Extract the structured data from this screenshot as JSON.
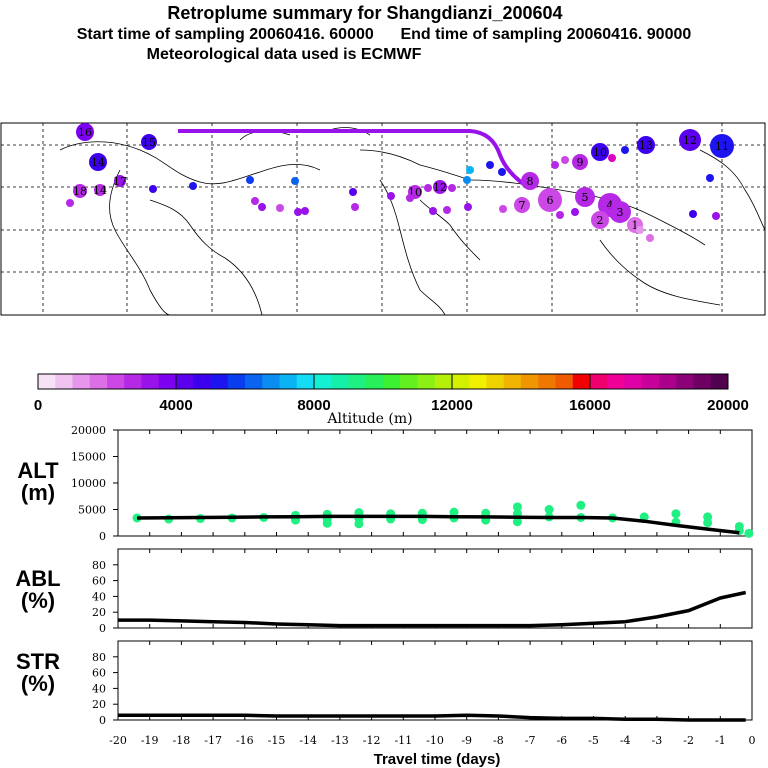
{
  "header": {
    "title": "Retroplume summary for Shangdianzi_200604",
    "start_label": "Start time of sampling 20060416. 60000",
    "end_label": "End time of sampling 20060416. 90000",
    "met_label": "Meteorological data used is ECMWF"
  },
  "colorbar": {
    "label": "Altitude (m)",
    "ticks": [
      "0",
      "4000",
      "8000",
      "12000",
      "16000",
      "20000"
    ],
    "colors": [
      "#f7e1f7",
      "#f0c2f0",
      "#e696ec",
      "#dc6ee6",
      "#cc48e6",
      "#b428e6",
      "#9a12ea",
      "#7e00f0",
      "#5a00ee",
      "#3c00ee",
      "#1e14f0",
      "#0a3cf0",
      "#0a64f0",
      "#0a8cf0",
      "#0ab4f4",
      "#14dcf4",
      "#14f0d2",
      "#14f0aa",
      "#1ef082",
      "#28f05a",
      "#3cf032",
      "#64f01e",
      "#8cf014",
      "#b4f00a",
      "#d2f000",
      "#f0f000",
      "#f0d200",
      "#f0b400",
      "#f09600",
      "#f07800",
      "#f05a00",
      "#f00000",
      "#f0006e",
      "#f00096",
      "#e000a8",
      "#c8009a",
      "#aa008c",
      "#8c0078",
      "#6e0064",
      "#50004e"
    ]
  },
  "map_labels": [
    {
      "text": "16",
      "color": "#7e00f0"
    },
    {
      "text": "15",
      "color": "#3c00ee"
    },
    {
      "text": "14",
      "color": "#3c00ee"
    },
    {
      "text": "17",
      "color": "#9a12ea"
    },
    {
      "text": "18",
      "color": "#b428e6"
    },
    {
      "text": "14",
      "color": "#b428e6"
    },
    {
      "text": "13",
      "color": "#3c00ee"
    },
    {
      "text": "12",
      "color": "#5a00ee"
    },
    {
      "text": "11",
      "color": "#1e14f0"
    },
    {
      "text": "10",
      "color": "#3c00ee"
    },
    {
      "text": "9",
      "color": "#b428e6"
    },
    {
      "text": "8",
      "color": "#b428e6"
    },
    {
      "text": "7",
      "color": "#cc48e6"
    },
    {
      "text": "6",
      "color": "#cc48e6"
    },
    {
      "text": "5",
      "color": "#b428e6"
    },
    {
      "text": "4",
      "color": "#b428e6"
    },
    {
      "text": "3",
      "color": "#b428e6"
    },
    {
      "text": "2",
      "color": "#cc48e6"
    },
    {
      "text": "1",
      "color": "#dc6ee6"
    },
    {
      "text": "12",
      "color": "#9a12ea"
    },
    {
      "text": "10",
      "color": "#b428e6"
    }
  ],
  "panels": {
    "alt": {
      "label_line1": "ALT",
      "label_line2": "(m)"
    },
    "abl": {
      "label_line1": "ABL",
      "label_line2": "(%)"
    },
    "str": {
      "label_line1": "STR",
      "label_line2": "(%)"
    },
    "xlabel": "Travel time (days)"
  },
  "chart_data": [
    {
      "type": "line",
      "name": "ALT",
      "ylabel": "ALT (m)",
      "ylim": [
        0,
        20000
      ],
      "yticks": [
        0,
        5000,
        10000,
        15000,
        20000
      ],
      "x": [
        -19.4,
        -18.4,
        -17.4,
        -16.4,
        -15.4,
        -14.4,
        -13.4,
        -12.4,
        -11.4,
        -10.4,
        -9.4,
        -8.4,
        -7.4,
        -6.4,
        -5.4,
        -4.4,
        -3.4,
        -2.4,
        -1.4,
        -0.4
      ],
      "y": [
        3400,
        3450,
        3500,
        3550,
        3600,
        3650,
        3700,
        3700,
        3700,
        3700,
        3650,
        3600,
        3550,
        3500,
        3500,
        3400,
        2800,
        2000,
        1300,
        600
      ],
      "points": [
        {
          "x": -19.4,
          "y": 3400
        },
        {
          "x": -18.4,
          "y": 3200
        },
        {
          "x": -17.4,
          "y": 3300
        },
        {
          "x": -16.4,
          "y": 3400
        },
        {
          "x": -15.4,
          "y": 3500
        },
        {
          "x": -14.4,
          "y": 3900
        },
        {
          "x": -14.4,
          "y": 3000
        },
        {
          "x": -13.4,
          "y": 4100
        },
        {
          "x": -13.4,
          "y": 3200
        },
        {
          "x": -13.4,
          "y": 2400
        },
        {
          "x": -12.4,
          "y": 4400
        },
        {
          "x": -12.4,
          "y": 3300
        },
        {
          "x": -12.4,
          "y": 2300
        },
        {
          "x": -11.4,
          "y": 4200
        },
        {
          "x": -11.4,
          "y": 3200
        },
        {
          "x": -10.4,
          "y": 4300
        },
        {
          "x": -10.4,
          "y": 3100
        },
        {
          "x": -9.4,
          "y": 4500
        },
        {
          "x": -9.4,
          "y": 3400
        },
        {
          "x": -8.4,
          "y": 4300
        },
        {
          "x": -8.4,
          "y": 3000
        },
        {
          "x": -7.4,
          "y": 5500
        },
        {
          "x": -7.4,
          "y": 4200
        },
        {
          "x": -7.4,
          "y": 2700
        },
        {
          "x": -6.4,
          "y": 5000
        },
        {
          "x": -6.4,
          "y": 3600
        },
        {
          "x": -5.4,
          "y": 5800
        },
        {
          "x": -5.4,
          "y": 3500
        },
        {
          "x": -4.4,
          "y": 3400
        },
        {
          "x": -3.4,
          "y": 3600
        },
        {
          "x": -2.4,
          "y": 4200
        },
        {
          "x": -2.4,
          "y": 2600
        },
        {
          "x": -1.4,
          "y": 3600
        },
        {
          "x": -1.4,
          "y": 2500
        },
        {
          "x": -0.4,
          "y": 1800
        },
        {
          "x": -0.4,
          "y": 1000
        },
        {
          "x": -0.1,
          "y": 500
        }
      ]
    },
    {
      "type": "line",
      "name": "ABL",
      "ylabel": "ABL (%)",
      "ylim": [
        0,
        100
      ],
      "yticks": [
        0,
        20,
        40,
        60,
        80
      ],
      "x": [
        -20,
        -19,
        -18,
        -17,
        -16,
        -15,
        -14,
        -13,
        -12,
        -11,
        -10,
        -9,
        -8,
        -7,
        -6,
        -5,
        -4,
        -3,
        -2,
        -1,
        -0.2
      ],
      "y": [
        10,
        10,
        9,
        8,
        7,
        5,
        4,
        3,
        3,
        3,
        3,
        3,
        3,
        3,
        4,
        6,
        8,
        14,
        22,
        38,
        45
      ]
    },
    {
      "type": "line",
      "name": "STR",
      "ylabel": "STR (%)",
      "ylim": [
        0,
        100
      ],
      "yticks": [
        0,
        20,
        40,
        60,
        80
      ],
      "x": [
        -20,
        -19,
        -18,
        -17,
        -16,
        -15,
        -14,
        -13,
        -12,
        -11,
        -10,
        -9,
        -8,
        -7,
        -6,
        -5,
        -4,
        -3,
        -2,
        -1,
        -0.2
      ],
      "y": [
        6,
        6,
        6,
        6,
        6,
        5,
        5,
        5,
        5,
        5,
        5,
        6,
        5,
        3,
        2,
        2,
        1,
        1,
        0,
        0,
        0
      ],
      "xlabel": "Travel time (days)",
      "xlim": [
        -20,
        0
      ],
      "xticks": [
        "-20",
        "-19",
        "-18",
        "-17",
        "-16",
        "-15",
        "-14",
        "-13",
        "-12",
        "-11",
        "-10",
        "-9",
        "-8",
        "-7",
        "-6",
        "-5",
        "-4",
        "-3",
        "-2",
        "-1",
        "0"
      ]
    }
  ]
}
